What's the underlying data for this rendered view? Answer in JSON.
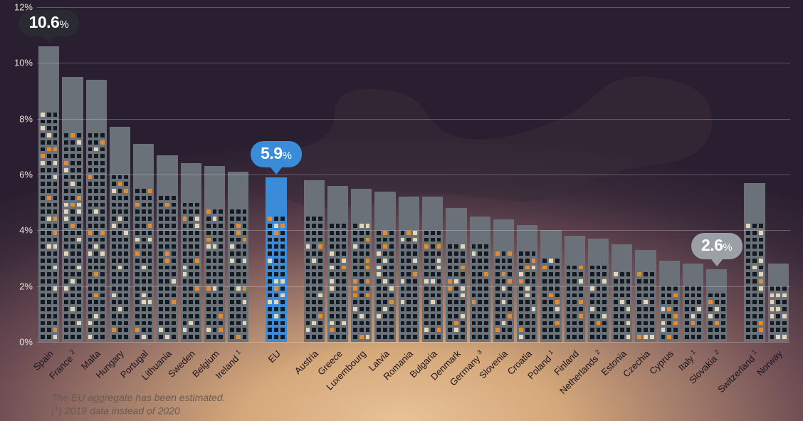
{
  "chart": {
    "type": "bar-infographic",
    "y_axis": {
      "min": 0,
      "max": 12,
      "ticks": [
        0,
        2,
        4,
        6,
        8,
        10,
        12
      ],
      "suffix": "%",
      "label_color": "#e8e0d8",
      "label_fontsize": 13,
      "gridline_color": "rgba(255,255,255,0.25)"
    },
    "bar_colors": {
      "default": "#6a7178",
      "highlight": "#3a8bd8"
    },
    "window_colors": {
      "dark": "#141a22",
      "cream": "#e6d6b8",
      "orange": "#e68a2e"
    },
    "callouts": [
      {
        "for": 0,
        "text_big": "10.6",
        "text_pct": "%",
        "bg": "#2a2a32",
        "fg": "#ffffff"
      },
      {
        "for": 9,
        "text_big": "5.9",
        "text_pct": "%",
        "bg": "#3a8bd8",
        "fg": "#ffffff"
      },
      {
        "for": 27,
        "text_big": "2.6",
        "text_pct": "%",
        "bg": "#9aa0a6",
        "fg": "#ffffff"
      }
    ],
    "bars": [
      {
        "label": "Spain",
        "sup": "",
        "value": 10.6,
        "highlight": false
      },
      {
        "label": "France",
        "sup": "2",
        "value": 9.5,
        "highlight": false
      },
      {
        "label": "Malta",
        "sup": "",
        "value": 9.4,
        "highlight": false
      },
      {
        "label": "Hungary",
        "sup": "",
        "value": 7.7,
        "highlight": false
      },
      {
        "label": "Portugal",
        "sup": "",
        "value": 7.1,
        "highlight": false
      },
      {
        "label": "Lithuania",
        "sup": "",
        "value": 6.7,
        "highlight": false
      },
      {
        "label": "Sweden",
        "sup": "",
        "value": 6.4,
        "highlight": false
      },
      {
        "label": "Belgium",
        "sup": "",
        "value": 6.3,
        "highlight": false
      },
      {
        "label": "Ireland",
        "sup": "1",
        "value": 6.1,
        "highlight": false
      },
      {
        "label": "EU",
        "sup": "",
        "value": 5.9,
        "highlight": true
      },
      {
        "label": "Austria",
        "sup": "",
        "value": 5.8,
        "highlight": false
      },
      {
        "label": "Greece",
        "sup": "",
        "value": 5.6,
        "highlight": false
      },
      {
        "label": "Luxembourg",
        "sup": "",
        "value": 5.5,
        "highlight": false
      },
      {
        "label": "Latvia",
        "sup": "",
        "value": 5.4,
        "highlight": false
      },
      {
        "label": "Romania",
        "sup": "",
        "value": 5.2,
        "highlight": false
      },
      {
        "label": "Bulgaria",
        "sup": "",
        "value": 5.2,
        "highlight": false
      },
      {
        "label": "Denmark",
        "sup": "",
        "value": 4.8,
        "highlight": false
      },
      {
        "label": "Germany",
        "sup": "3",
        "value": 4.5,
        "highlight": false
      },
      {
        "label": "Slovenia",
        "sup": "",
        "value": 4.4,
        "highlight": false
      },
      {
        "label": "Croatia",
        "sup": "",
        "value": 4.2,
        "highlight": false
      },
      {
        "label": "Poland",
        "sup": "1",
        "value": 4.0,
        "highlight": false
      },
      {
        "label": "Finland",
        "sup": "",
        "value": 3.8,
        "highlight": false
      },
      {
        "label": "Netherlands",
        "sup": "2",
        "value": 3.7,
        "highlight": false
      },
      {
        "label": "Estonia",
        "sup": "",
        "value": 3.5,
        "highlight": false
      },
      {
        "label": "Czechia",
        "sup": "",
        "value": 3.3,
        "highlight": false
      },
      {
        "label": "Cyprus",
        "sup": "",
        "value": 2.9,
        "highlight": false
      },
      {
        "label": "Italy",
        "sup": "1",
        "value": 2.8,
        "highlight": false
      },
      {
        "label": "Slovakia",
        "sup": "2",
        "value": 2.6,
        "highlight": false
      },
      {
        "label": "Switzerland",
        "sup": "1",
        "value": 5.7,
        "highlight": false
      },
      {
        "label": "Norway",
        "sup": "",
        "value": 2.8,
        "highlight": false
      }
    ],
    "group_gaps_after_index": [
      8,
      9,
      27
    ],
    "gap_width_ratio": 0.6,
    "footnotes": [
      "The EU aggregate has been estimated.",
      "(1) 2019 data instead of 2020"
    ]
  }
}
